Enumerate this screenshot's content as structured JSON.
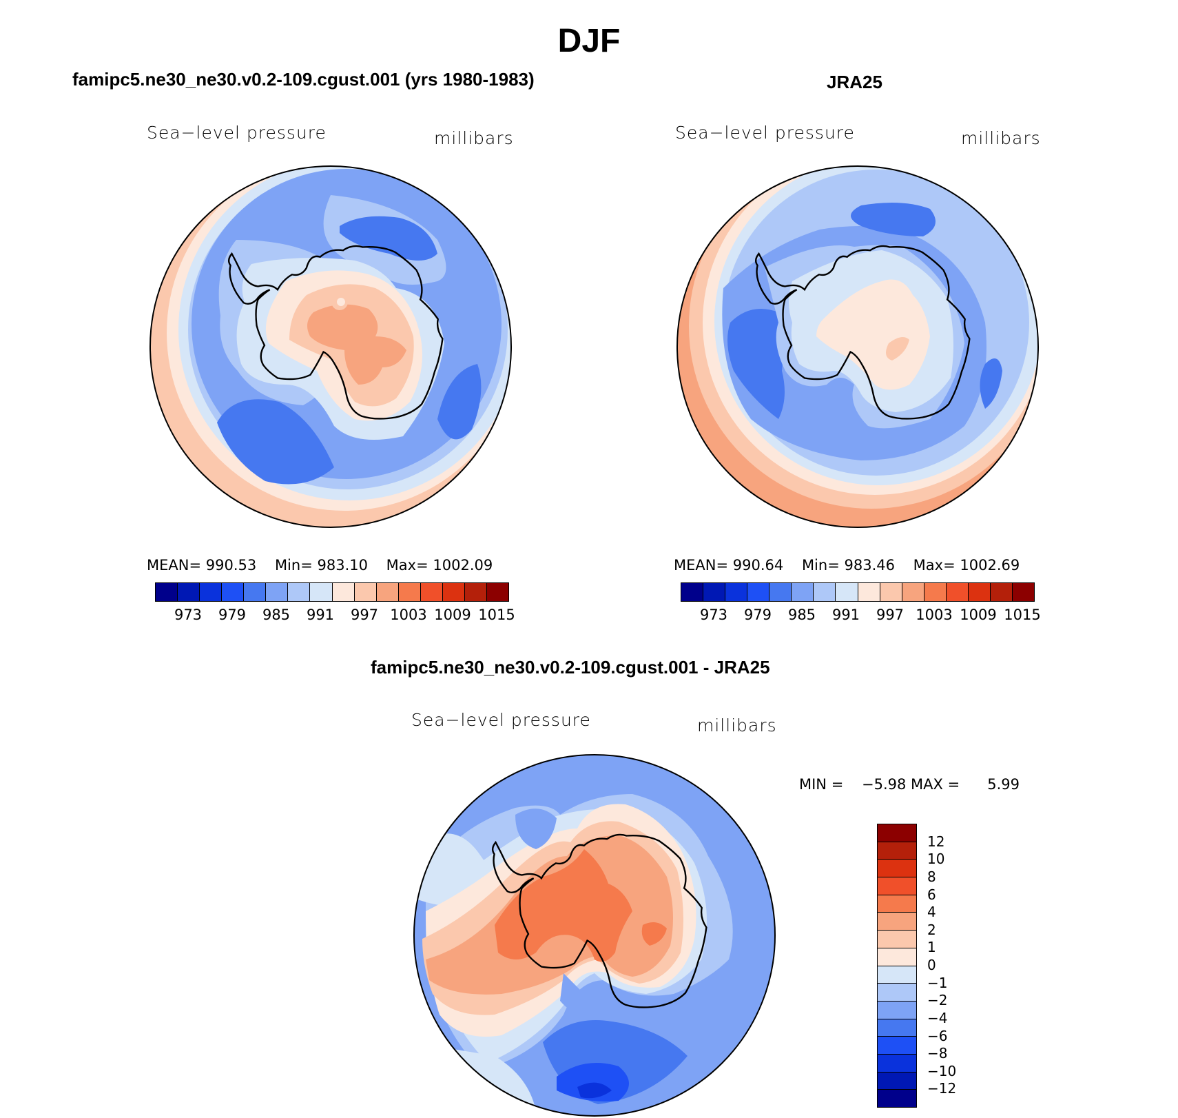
{
  "figure": {
    "title": "DJF",
    "variable_label": "Sea−level pressure",
    "units_label": "millibars"
  },
  "panels": [
    {
      "title": "famipc5.ne30_ne30.v0.2-109.cgust.001 (yrs 1980-1983)",
      "variable": "Sea−level pressure",
      "units": "millibars",
      "stats": {
        "mean_label": "MEAN=",
        "mean": "990.53",
        "min_label": "Min=",
        "min": "983.10",
        "max_label": "Max=",
        "max": "1002.09"
      }
    },
    {
      "title": "JRA25",
      "variable": "Sea−level pressure",
      "units": "millibars",
      "stats": {
        "mean_label": "MEAN=",
        "mean": "990.64",
        "min_label": "Min=",
        "min": "983.46",
        "max_label": "Max=",
        "max": "1002.69"
      }
    },
    {
      "title": "famipc5.ne30_ne30.v0.2-109.cgust.001 - JRA25",
      "variable": "Sea−level pressure",
      "units": "millibars",
      "stats": {
        "min_label": "MIN =",
        "min": "−5.98",
        "max_label": "MAX =",
        "max": "5.99"
      }
    }
  ],
  "colorbar_abs": {
    "labels": [
      "973",
      "979",
      "985",
      "991",
      "997",
      "1003",
      "1009",
      "1015"
    ],
    "colors": [
      "#00008b",
      "#0018b4",
      "#0a32dc",
      "#1e50f5",
      "#4678f0",
      "#7ea3f5",
      "#aec8f8",
      "#d6e6f8",
      "#fde8dc",
      "#fbc8ad",
      "#f7a47e",
      "#f57a4c",
      "#f0502a",
      "#dc3210",
      "#b4200a",
      "#8c0000"
    ]
  },
  "colorbar_diff": {
    "labels": [
      "12",
      "10",
      "8",
      "6",
      "4",
      "2",
      "1",
      "0",
      "−1",
      "−2",
      "−4",
      "−6",
      "−8",
      "−10",
      "−12"
    ],
    "colors": [
      "#8c0000",
      "#b4200a",
      "#dc3210",
      "#f0502a",
      "#f57a4c",
      "#f7a47e",
      "#fbc8ad",
      "#fde8dc",
      "#d6e6f8",
      "#aec8f8",
      "#7ea3f5",
      "#4678f0",
      "#1e50f5",
      "#0a32dc",
      "#0018b4",
      "#00008b"
    ]
  }
}
